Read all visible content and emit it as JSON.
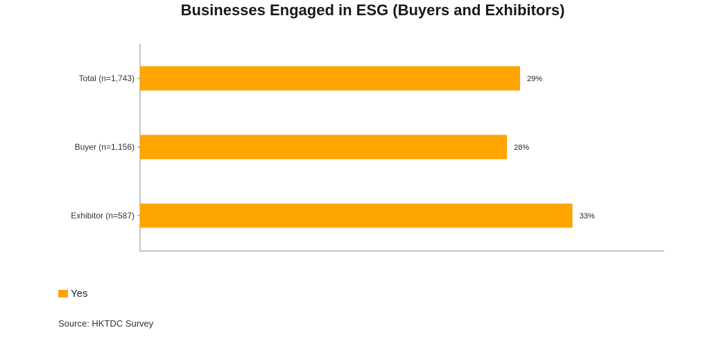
{
  "chart_data": {
    "type": "bar",
    "orientation": "horizontal",
    "title": "Businesses Engaged in ESG (Buyers and Exhibitors)",
    "categories": [
      "Total (n=1,743)",
      "Buyer (n=1,156)",
      "Exhibitor (n=587)"
    ],
    "series": [
      {
        "name": "Yes",
        "values": [
          29,
          28,
          33
        ],
        "labels": [
          "29%",
          "28%",
          "33%"
        ],
        "color": "#FFA500"
      }
    ],
    "xlim": [
      0,
      40
    ],
    "grid": false,
    "legend": "bottom-left"
  },
  "source": "Source: HKTDC Survey"
}
